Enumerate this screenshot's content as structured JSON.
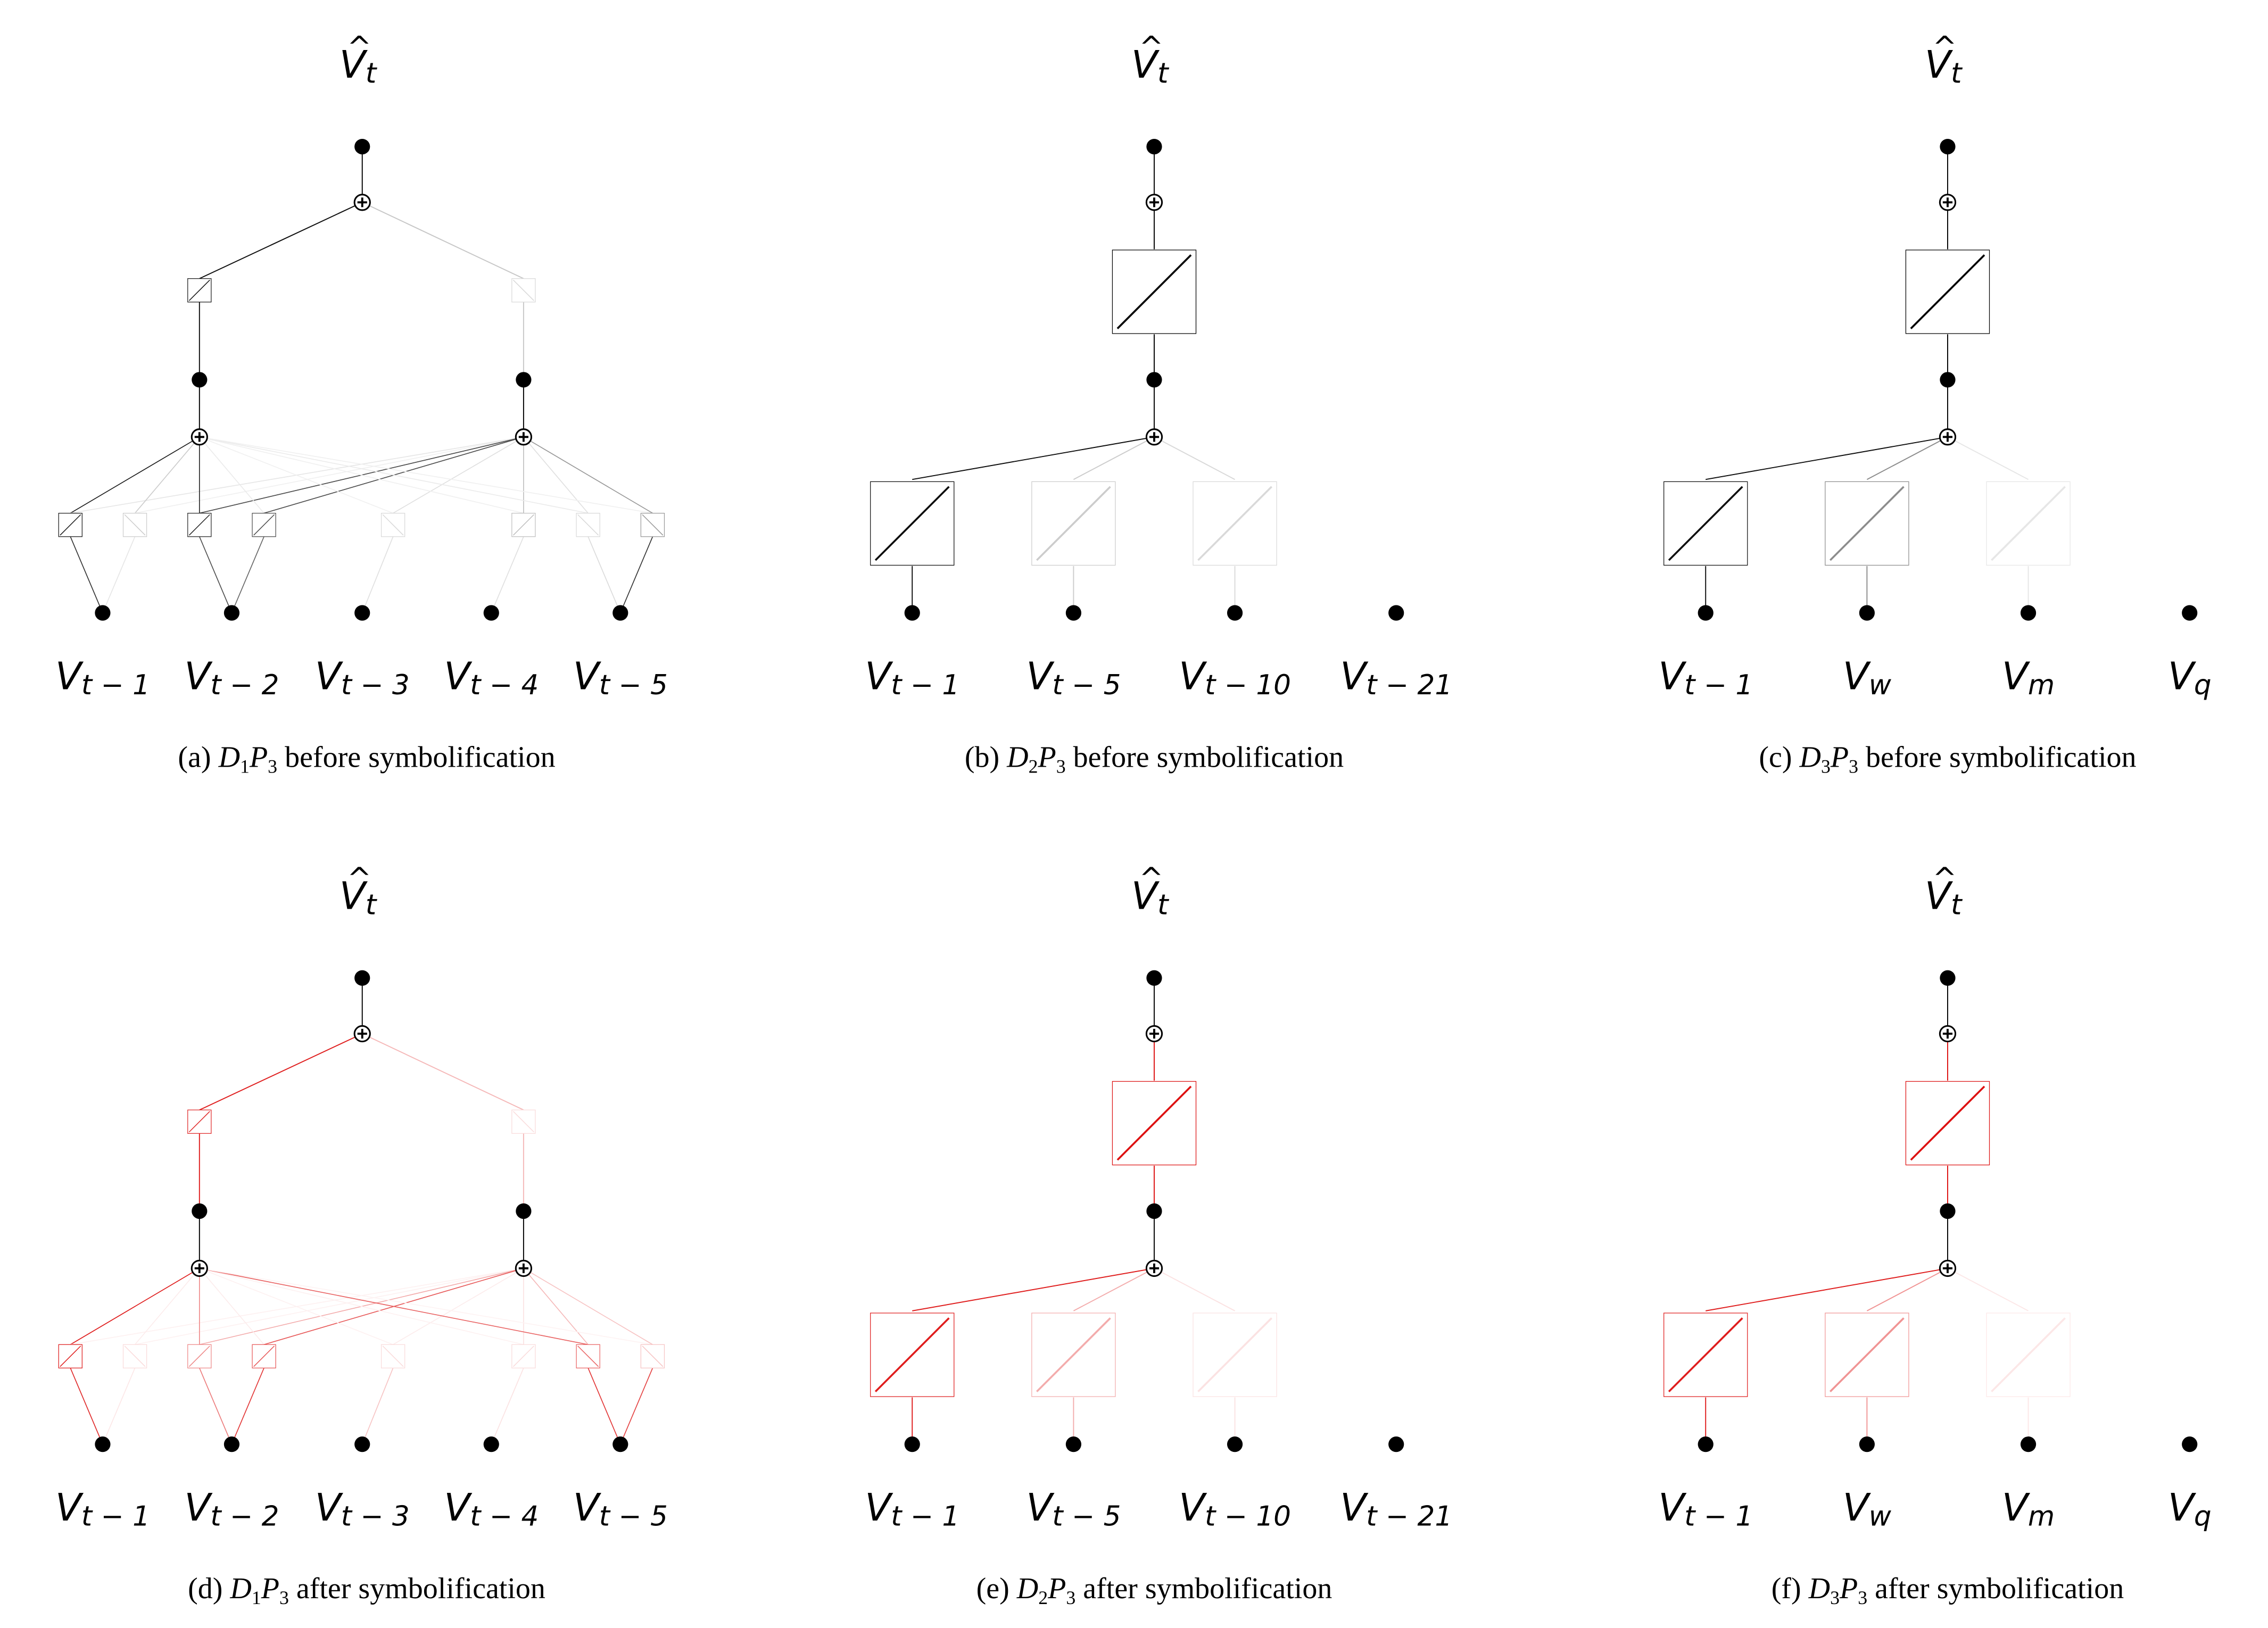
{
  "figure": {
    "output_label": {
      "main": "V",
      "hat": "^",
      "sub": "t"
    },
    "panels": [
      {
        "id": "a",
        "color": "#000000",
        "caption": {
          "tag": "(a)",
          "D": "D",
          "D_sub": "1",
          "P": "P",
          "P_sub": "3",
          "text": "before symbolification"
        },
        "inputs": [
          {
            "main": "V",
            "sub": "t − 1"
          },
          {
            "main": "V",
            "sub": "t − 2"
          },
          {
            "main": "V",
            "sub": "t − 3"
          },
          {
            "main": "V",
            "sub": "t − 4"
          },
          {
            "main": "V",
            "sub": "t − 5"
          }
        ]
      },
      {
        "id": "b",
        "color": "#000000",
        "caption": {
          "tag": "(b)",
          "D": "D",
          "D_sub": "2",
          "P": "P",
          "P_sub": "3",
          "text": "before symbolification"
        },
        "inputs": [
          {
            "main": "V",
            "sub": "t − 1"
          },
          {
            "main": "V",
            "sub": "t − 5"
          },
          {
            "main": "V",
            "sub": "t − 10"
          },
          {
            "main": "V",
            "sub": "t − 21"
          }
        ]
      },
      {
        "id": "c",
        "color": "#000000",
        "caption": {
          "tag": "(c)",
          "D": "D",
          "D_sub": "3",
          "P": "P",
          "P_sub": "3",
          "text": "before symbolification"
        },
        "inputs": [
          {
            "main": "V",
            "sub": "t − 1"
          },
          {
            "main": "V",
            "sub": "w"
          },
          {
            "main": "V",
            "sub": "m"
          },
          {
            "main": "V",
            "sub": "q"
          }
        ]
      },
      {
        "id": "d",
        "color": "#dd1111",
        "caption": {
          "tag": "(d)",
          "D": "D",
          "D_sub": "1",
          "P": "P",
          "P_sub": "3",
          "text": "after symbolification"
        },
        "inputs": [
          {
            "main": "V",
            "sub": "t − 1"
          },
          {
            "main": "V",
            "sub": "t − 2"
          },
          {
            "main": "V",
            "sub": "t − 3"
          },
          {
            "main": "V",
            "sub": "t − 4"
          },
          {
            "main": "V",
            "sub": "t − 5"
          }
        ]
      },
      {
        "id": "e",
        "color": "#dd1111",
        "caption": {
          "tag": "(e)",
          "D": "D",
          "D_sub": "2",
          "P": "P",
          "P_sub": "3",
          "text": "after symbolification"
        },
        "inputs": [
          {
            "main": "V",
            "sub": "t − 1"
          },
          {
            "main": "V",
            "sub": "t − 5"
          },
          {
            "main": "V",
            "sub": "t − 10"
          },
          {
            "main": "V",
            "sub": "t − 21"
          }
        ]
      },
      {
        "id": "f",
        "color": "#dd1111",
        "caption": {
          "tag": "(f)",
          "D": "D",
          "D_sub": "3",
          "P": "P",
          "P_sub": "3",
          "text": "after symbolification"
        },
        "inputs": [
          {
            "main": "V",
            "sub": "t − 1"
          },
          {
            "main": "V",
            "sub": "w"
          },
          {
            "main": "V",
            "sub": "m"
          },
          {
            "main": "V",
            "sub": "q"
          }
        ]
      }
    ]
  }
}
